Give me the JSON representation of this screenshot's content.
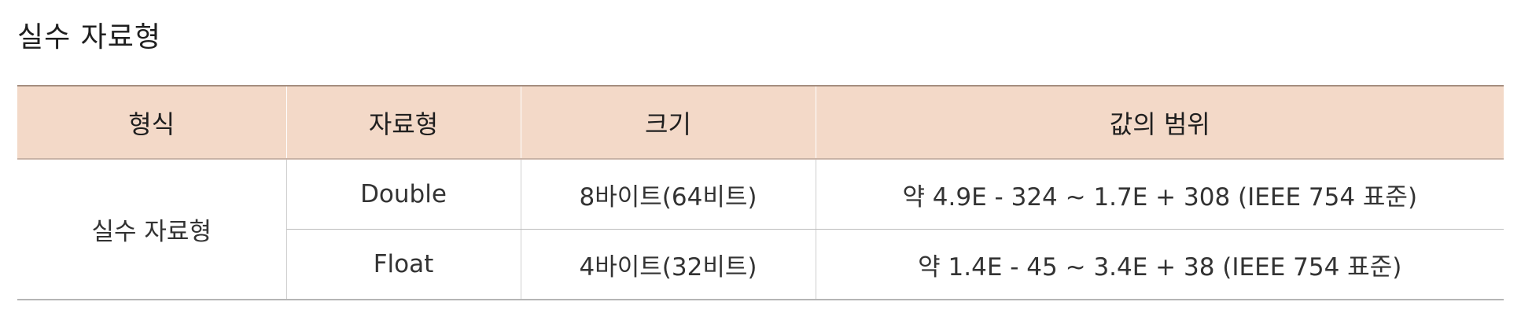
{
  "title": "실수 자료형",
  "table": {
    "headers": [
      "형식",
      "자료형",
      "크기",
      "값의 범위"
    ],
    "group_label": "실수 자료형",
    "rows": [
      {
        "type": "Double",
        "size": "8바이트(64비트)",
        "range": "약 4.9E - 324 ~ 1.7E + 308 (IEEE 754 표준)"
      },
      {
        "type": "Float",
        "size": "4바이트(32비트)",
        "range": "약 1.4E - 45 ~ 3.4E + 38 (IEEE 754 표준)"
      }
    ]
  },
  "colors": {
    "header_bg": "#f3d9c8",
    "header_border": "#a58e80",
    "grid_line": "#bdbdbd"
  }
}
